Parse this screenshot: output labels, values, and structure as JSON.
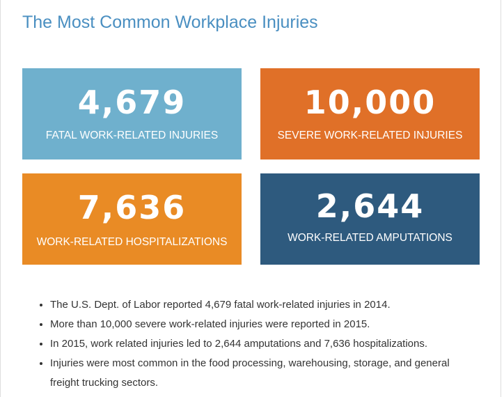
{
  "header": {
    "title": "The Most Common Workplace Injuries"
  },
  "cards": [
    {
      "number": "4,679",
      "label": "FATAL WORK-RELATED INJURIES"
    },
    {
      "number": "10,000",
      "label": "SEVERE WORK-RELATED INJURIES"
    },
    {
      "number": "7,636",
      "label": "WORK-RELATED HOSPITALIZATIONS"
    },
    {
      "number": "2,644",
      "label": "WORK-RELATED AMPUTATIONS"
    }
  ],
  "bullets": [
    "The U.S. Dept. of Labor reported 4,679 fatal work-related injuries in 2014.",
    "More than 10,000 severe work-related injuries were reported in 2015.",
    "In 2015, work related injuries led to 2,644 amputations and 7,636 hospitalizations.",
    "Injuries were most common in the food processing, warehousing, storage, and general freight trucking sectors."
  ]
}
